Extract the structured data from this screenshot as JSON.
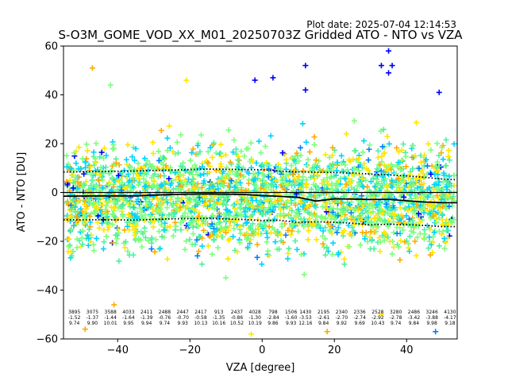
{
  "header": {
    "plot_date": "Plot date: 2025-07-04 12:14:53",
    "title": "S-O3M_GOME_VOD_XX_M01_20250703Z Gridded ATO - NTO vs VZA"
  },
  "chart_data": {
    "type": "scatter",
    "title": "S-O3M_GOME_VOD_XX_M01_20250703Z Gridded ATO - NTO vs VZA",
    "xlabel": "VZA [degree]",
    "ylabel": "ATO - NTO [DU]",
    "xlim": [
      -55,
      54
    ],
    "ylim": [
      -60,
      60
    ],
    "xticks": [
      -40,
      -20,
      0,
      20,
      40
    ],
    "yticks": [
      -60,
      -40,
      -20,
      0,
      20,
      40,
      60
    ],
    "grid": false,
    "marker": "plus",
    "point_colors": [
      "#0000ff",
      "#0080ff",
      "#00d4ff",
      "#7dff7a",
      "#ffe600",
      "#ffaa00",
      "#50f0a0"
    ],
    "outliers": [
      {
        "x": -47,
        "y": 51,
        "color": "#ffaa00"
      },
      {
        "x": -42,
        "y": 44,
        "color": "#7dff7a"
      },
      {
        "x": -21,
        "y": 46,
        "color": "#ffe600"
      },
      {
        "x": -2,
        "y": 46,
        "color": "#0000ff"
      },
      {
        "x": 3,
        "y": 47,
        "color": "#0000ff"
      },
      {
        "x": 12,
        "y": 52,
        "color": "#0000ff"
      },
      {
        "x": 12,
        "y": 42,
        "color": "#0000ff"
      },
      {
        "x": 33,
        "y": 52,
        "color": "#0000ff"
      },
      {
        "x": 35,
        "y": 58,
        "color": "#0000ff"
      },
      {
        "x": 35,
        "y": 49,
        "color": "#0000ff"
      },
      {
        "x": 36,
        "y": 52,
        "color": "#0000ff"
      },
      {
        "x": 49,
        "y": 41,
        "color": "#0000ff"
      },
      {
        "x": -41,
        "y": -46,
        "color": "#ffaa00"
      },
      {
        "x": -3,
        "y": -58,
        "color": "#ffe600"
      },
      {
        "x": -49,
        "y": -56,
        "color": "#ffaa00"
      },
      {
        "x": 48,
        "y": -57,
        "color": "#0080ff"
      },
      {
        "x": 33,
        "y": -50,
        "color": "#ffe600"
      },
      {
        "x": 18,
        "y": -57,
        "color": "#ffaa00"
      }
    ],
    "mean_line": {
      "x": [
        -55,
        -45,
        -35,
        -25,
        -15,
        -5,
        0,
        5,
        10,
        15,
        20,
        25,
        30,
        35,
        40,
        45,
        50,
        54
      ],
      "y": [
        -1.5,
        -1.4,
        -1.4,
        -0.8,
        -0.6,
        -0.8,
        -1.3,
        -1.6,
        -2.0,
        -3.5,
        -2.6,
        -2.7,
        -2.9,
        -2.8,
        -3.4,
        -3.9,
        -4.2,
        -4.2
      ]
    },
    "upper_dotted": {
      "x": [
        -55,
        -45,
        -35,
        -25,
        -15,
        -5,
        0,
        5,
        10,
        15,
        20,
        25,
        30,
        35,
        40,
        45,
        50,
        54
      ],
      "y": [
        8.4,
        8.6,
        8.8,
        9.2,
        9.6,
        9.4,
        9.3,
        8.7,
        8.5,
        8.3,
        8.2,
        8.0,
        7.5,
        7.2,
        6.8,
        6.2,
        5.5,
        5.2
      ]
    },
    "lower_dotted": {
      "x": [
        -55,
        -45,
        -35,
        -25,
        -15,
        -5,
        0,
        5,
        10,
        15,
        20,
        25,
        30,
        35,
        40,
        45,
        50,
        54
      ],
      "y": [
        -11.2,
        -11.2,
        -11.3,
        -10.8,
        -10.6,
        -11.1,
        -11.5,
        -11.4,
        -12.3,
        -12.0,
        -12.2,
        -12.6,
        -13.3,
        -13.0,
        -13.2,
        -13.5,
        -14.0,
        -14.0
      ]
    },
    "bin_stats": [
      {
        "x": -52,
        "n": "3895",
        "mean": "-1.52",
        "std": "9.74"
      },
      {
        "x": -47,
        "n": "3075",
        "mean": "-1.37",
        "std": "9.90"
      },
      {
        "x": -42,
        "n": "3588",
        "mean": "-1.44",
        "std": "10.01"
      },
      {
        "x": -37,
        "n": "4033",
        "mean": "-1.64",
        "std": "9.95"
      },
      {
        "x": -32,
        "n": "2411",
        "mean": "-1.39",
        "std": "9.94"
      },
      {
        "x": -27,
        "n": "2488",
        "mean": "-0.76",
        "std": "9.74"
      },
      {
        "x": -22,
        "n": "2447",
        "mean": "-0.70",
        "std": "9.93"
      },
      {
        "x": -17,
        "n": "2417",
        "mean": "-0.58",
        "std": "10.13"
      },
      {
        "x": -12,
        "n": "913",
        "mean": "-1.35",
        "std": "10.16"
      },
      {
        "x": -7,
        "n": "2437",
        "mean": "-0.86",
        "std": "10.52"
      },
      {
        "x": -2,
        "n": "4028",
        "mean": "-1.30",
        "std": "10.19"
      },
      {
        "x": 3,
        "n": "798",
        "mean": "-2.84",
        "std": "9.86"
      },
      {
        "x": 8,
        "n": "1506",
        "mean": "-1.60",
        "std": "9.93"
      },
      {
        "x": 12,
        "n": "1430",
        "mean": "-3.53",
        "std": "12.16"
      },
      {
        "x": 17,
        "n": "2195",
        "mean": "-2.61",
        "std": "9.84"
      },
      {
        "x": 22,
        "n": "2340",
        "mean": "-2.70",
        "std": "9.92"
      },
      {
        "x": 27,
        "n": "2336",
        "mean": "-2.74",
        "std": "9.69"
      },
      {
        "x": 32,
        "n": "2528",
        "mean": "-2.92",
        "std": "10.43"
      },
      {
        "x": 37,
        "n": "3280",
        "mean": "-2.78",
        "std": "9.74"
      },
      {
        "x": 42,
        "n": "2486",
        "mean": "-3.42",
        "std": "9.84"
      },
      {
        "x": 47,
        "n": "3246",
        "mean": "-3.88",
        "std": "9.98"
      },
      {
        "x": 52,
        "n": "4130",
        "mean": "-4.17",
        "std": "9.18"
      }
    ]
  }
}
